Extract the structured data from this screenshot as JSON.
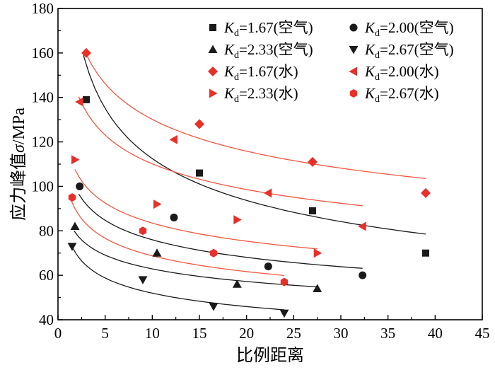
{
  "chart_data": {
    "type": "scatter",
    "title": "",
    "xlabel": "比例距离",
    "ylabel": "应力峰值σ/MPa",
    "ylabel_parts": {
      "pre": "应力峰值",
      "symbol": "σ",
      "post": "/MPa"
    },
    "xlim": [
      0,
      45
    ],
    "ylim": [
      40,
      180
    ],
    "xticks": [
      0,
      5,
      10,
      15,
      20,
      25,
      30,
      35,
      40,
      45
    ],
    "yticks": [
      40,
      60,
      80,
      100,
      120,
      140,
      160,
      180
    ],
    "grid": false,
    "legend_position": "top-right",
    "series": [
      {
        "name": "Kd=1.67(空气)",
        "kd": "1.67",
        "medium": "(空气)",
        "marker": "square",
        "color": "#1a1a1a",
        "x": [
          3.0,
          15.0,
          27.0,
          39.0
        ],
        "y": [
          139,
          106,
          89,
          70
        ],
        "fit_a": 206.6,
        "fit_b": 0.264,
        "fit_range": [
          2.7,
          39.0
        ]
      },
      {
        "name": "Kd=2.00(空气)",
        "kd": "2.00",
        "medium": "(空气)",
        "marker": "circle",
        "color": "#1a1a1a",
        "x": [
          2.3,
          12.3,
          22.3,
          32.3
        ],
        "y": [
          100,
          86,
          64,
          60
        ],
        "fit_a": 109.3,
        "fit_b": 0.158,
        "fit_range": [
          2.2,
          32.3
        ]
      },
      {
        "name": "Kd=2.33(空气)",
        "kd": "2.33",
        "medium": "(空气)",
        "marker": "triangle-up",
        "color": "#1a1a1a",
        "x": [
          1.8,
          10.5,
          19.0,
          27.5
        ],
        "y": [
          82,
          70,
          56,
          54
        ],
        "fit_a": 86.0,
        "fit_b": 0.136,
        "fit_range": [
          1.7,
          27.5
        ]
      },
      {
        "name": "Kd=2.67(空气)",
        "kd": "2.67",
        "medium": "(空气)",
        "marker": "triangle-down",
        "color": "#1a1a1a",
        "x": [
          1.5,
          9.0,
          16.5,
          24.0
        ],
        "y": [
          73,
          58,
          46,
          43
        ],
        "fit_a": 78.3,
        "fit_b": 0.178,
        "fit_range": [
          1.5,
          24.0
        ]
      },
      {
        "name": "Kd=1.67(水)",
        "kd": "1.67",
        "medium": "(水)",
        "marker": "diamond",
        "color": "#e8302a",
        "x": [
          3.0,
          15.0,
          27.0,
          39.0
        ],
        "y": [
          160,
          128,
          111,
          97
        ],
        "fit_a": 191.6,
        "fit_b": 0.168,
        "fit_range": [
          3.0,
          39.0
        ]
      },
      {
        "name": "Kd=2.00(水)",
        "kd": "2.00",
        "medium": "(水)",
        "marker": "triangle-left",
        "color": "#e8302a",
        "x": [
          2.3,
          12.3,
          22.3,
          32.3
        ],
        "y": [
          138,
          121,
          97,
          82
        ],
        "fit_a": 159.2,
        "fit_b": 0.16,
        "fit_range": [
          2.2,
          32.3
        ]
      },
      {
        "name": "Kd=2.33(水)",
        "kd": "2.33",
        "medium": "(水)",
        "marker": "triangle-right",
        "color": "#e8302a",
        "x": [
          1.8,
          10.5,
          19.0,
          27.5
        ],
        "y": [
          112,
          92,
          85,
          70
        ],
        "fit_a": 117.4,
        "fit_b": 0.148,
        "fit_range": [
          1.8,
          27.5
        ]
      },
      {
        "name": "Kd=2.67(水)",
        "kd": "2.67",
        "medium": "(水)",
        "marker": "hexagon",
        "color": "#e8302a",
        "x": [
          1.5,
          9.0,
          16.5,
          24.0
        ],
        "y": [
          95,
          80,
          70,
          57
        ],
        "fit_a": 98.7,
        "fit_b": 0.157,
        "fit_range": [
          1.4,
          24.0
        ]
      }
    ]
  }
}
